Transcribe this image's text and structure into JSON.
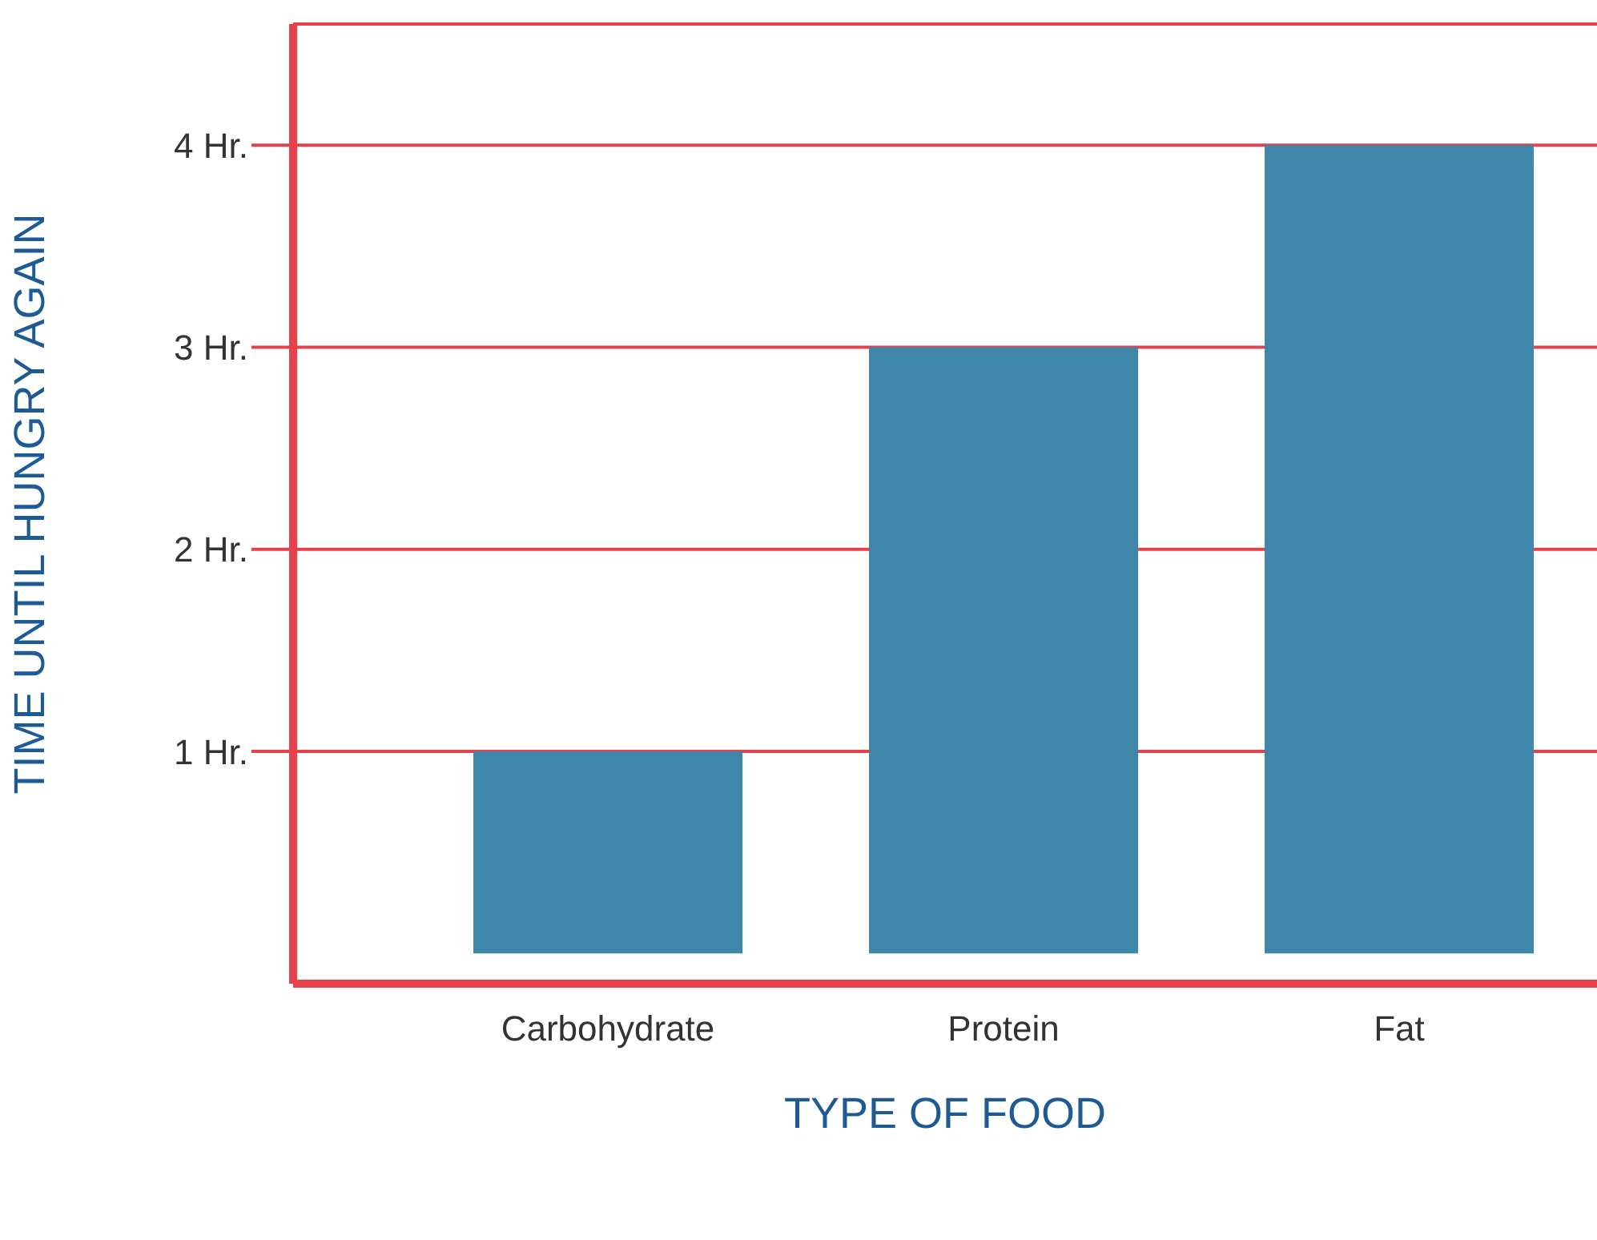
{
  "chart_data": {
    "type": "bar",
    "xlabel": "TYPE OF FOOD",
    "ylabel": "TIME UNTIL HUNGRY AGAIN",
    "categories": [
      "Carbohydrate",
      "Protein",
      "Fat"
    ],
    "values": [
      1,
      3,
      4
    ],
    "color": "#3f86ab",
    "ylim": [
      -0.15,
      4.6
    ],
    "yticks": [
      {
        "value": 1,
        "label": "1 Hr."
      },
      {
        "value": 2,
        "label": "2 Hr."
      },
      {
        "value": 3,
        "label": "3 Hr."
      },
      {
        "value": 4,
        "label": "4 Hr."
      }
    ],
    "grid": "y"
  }
}
